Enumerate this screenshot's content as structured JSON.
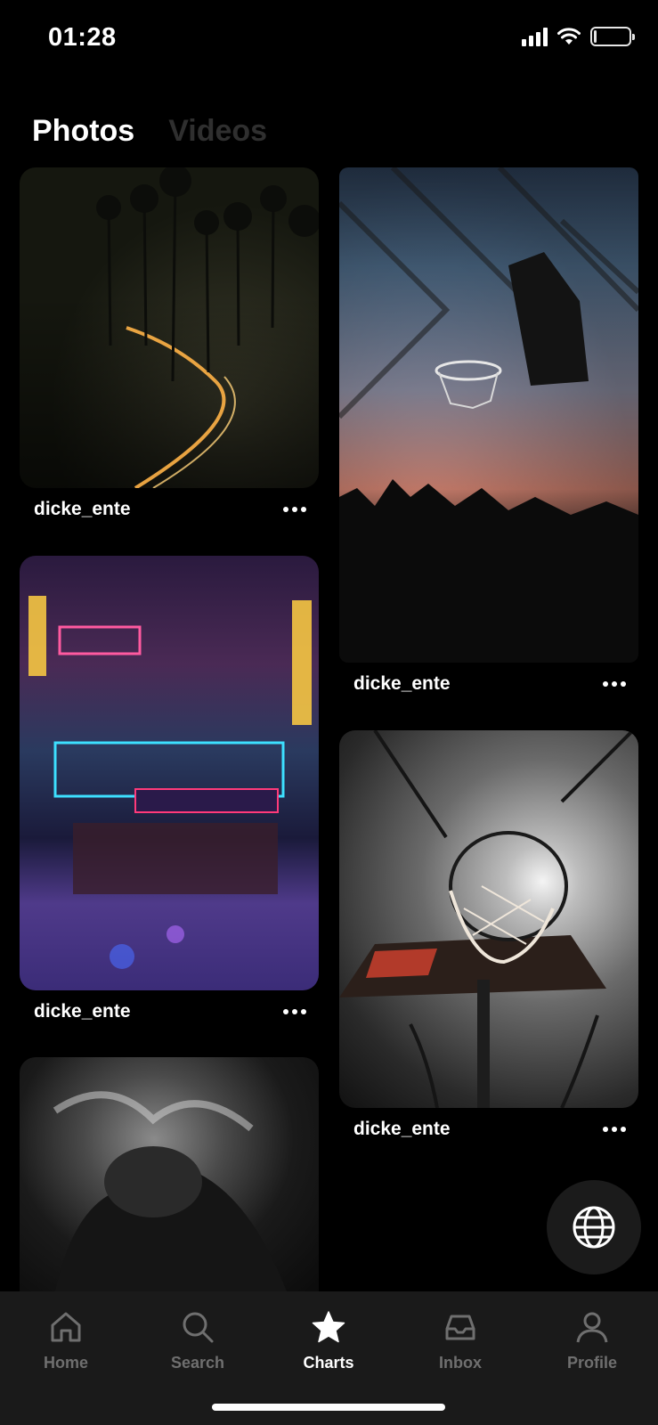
{
  "status_bar": {
    "time": "01:28"
  },
  "tabs": [
    {
      "label": "Photos",
      "active": true
    },
    {
      "label": "Videos",
      "active": false
    }
  ],
  "feed": {
    "posts": [
      {
        "username": "dicke_ente",
        "image": "palm-tree-road-sunset"
      },
      {
        "username": "dicke_ente",
        "image": "basketball-hoop-chain-fence-sunset"
      },
      {
        "username": "dicke_ente",
        "image": "neon-korean-street-night"
      },
      {
        "username": "dicke_ente",
        "image": "basketball-hoop-palms-sun"
      },
      {
        "username": "",
        "image": "smoke-hooded-figure"
      }
    ]
  },
  "fab": {
    "icon": "globe-icon"
  },
  "bottom_nav": {
    "items": [
      {
        "label": "Home",
        "icon": "home-icon",
        "active": false
      },
      {
        "label": "Search",
        "icon": "search-icon",
        "active": false
      },
      {
        "label": "Charts",
        "icon": "star-icon",
        "active": true
      },
      {
        "label": "Inbox",
        "icon": "inbox-icon",
        "active": false
      },
      {
        "label": "Profile",
        "icon": "user-icon",
        "active": false
      }
    ]
  },
  "colors": {
    "background": "#000000",
    "nav_background": "#1a1a1a",
    "inactive": "#6f6f6f",
    "active": "#ffffff"
  }
}
